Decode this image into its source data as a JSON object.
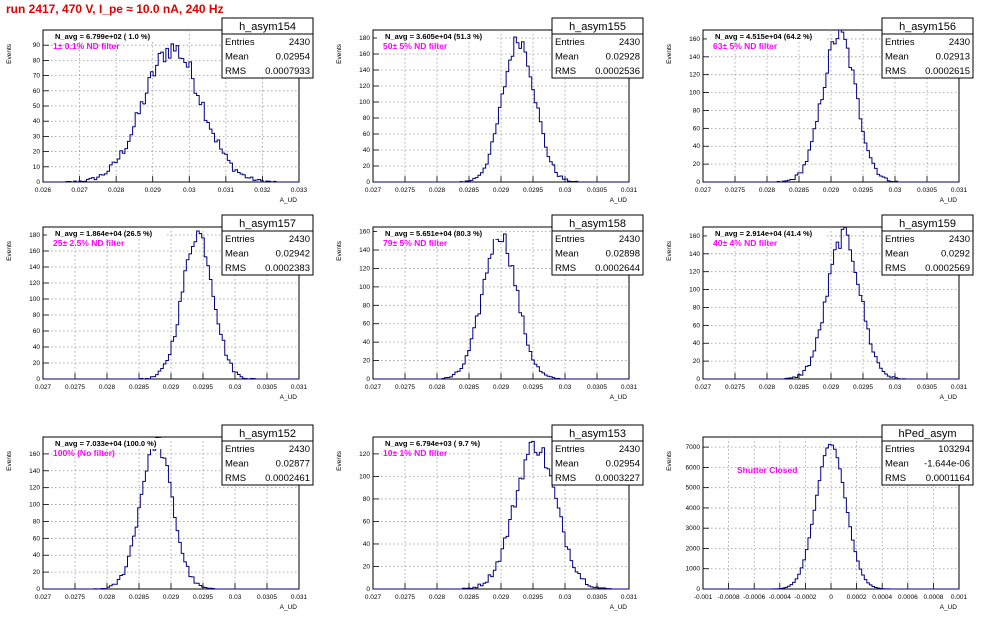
{
  "title": "run 2417,   470 V, I_pe ≈ 10.0 nA, 240 Hz",
  "axis_ylabel": "Events",
  "axis_xlabel": "A_UD",
  "stats_labels": {
    "entries": "Entries",
    "mean": "Mean",
    "rms": "RMS"
  },
  "colors": {
    "histogram": "#000080",
    "title": "#e00000",
    "annotation": "#ff00ff"
  },
  "chart_data": [
    {
      "type": "bar",
      "name": "h_asym154",
      "navg": "N_avg = 6.799e+02 ( 1.0 %)",
      "filter": "1± 0.1% ND filter",
      "entries": "2430",
      "mean": "0.02954",
      "rms": "0.0007933",
      "xlim": [
        0.026,
        0.033
      ],
      "xticks": [
        "0.026",
        "0.027",
        "0.028",
        "0.029",
        "0.03",
        "0.031",
        "0.032",
        "0.033"
      ],
      "ylim": [
        0,
        100
      ],
      "yticks": [
        "0",
        "10",
        "20",
        "30",
        "40",
        "50",
        "60",
        "70",
        "80",
        "90"
      ],
      "peak": 88
    },
    {
      "type": "bar",
      "name": "h_asym155",
      "navg": "N_avg = 3.605e+04 (51.3 %)",
      "filter": "50± 5% ND filter",
      "entries": "2430",
      "mean": "0.02928",
      "rms": "0.0002536",
      "xlim": [
        0.027,
        0.031
      ],
      "xticks": [
        "0.027",
        "0.0275",
        "0.028",
        "0.0285",
        "0.029",
        "0.0295",
        "0.03",
        "0.0305",
        "0.031"
      ],
      "ylim": [
        0,
        190
      ],
      "yticks": [
        "0",
        "20",
        "40",
        "60",
        "80",
        "100",
        "120",
        "140",
        "160",
        "180"
      ],
      "peak": 178
    },
    {
      "type": "bar",
      "name": "h_asym156",
      "navg": "N_avg = 4.515e+04 (64.2 %)",
      "filter": "63± 5% ND filter",
      "entries": "2430",
      "mean": "0.02913",
      "rms": "0.0002615",
      "xlim": [
        0.027,
        0.031
      ],
      "xticks": [
        "0.027",
        "0.0275",
        "0.028",
        "0.0285",
        "0.029",
        "0.0295",
        "0.03",
        "0.0305",
        "0.031"
      ],
      "ylim": [
        0,
        170
      ],
      "yticks": [
        "0",
        "20",
        "40",
        "60",
        "80",
        "100",
        "120",
        "140",
        "160"
      ],
      "peak": 165
    },
    {
      "type": "bar",
      "name": "h_asym157",
      "navg": "N_avg = 1.864e+04 (26.5 %)",
      "filter": "25± 2.5% ND filter",
      "entries": "2430",
      "mean": "0.02942",
      "rms": "0.0002383",
      "xlim": [
        0.027,
        0.031
      ],
      "xticks": [
        "0.027",
        "0.0275",
        "0.028",
        "0.0285",
        "0.029",
        "0.0295",
        "0.03",
        "0.0305",
        "0.031"
      ],
      "ylim": [
        0,
        190
      ],
      "yticks": [
        "0",
        "20",
        "40",
        "60",
        "80",
        "100",
        "120",
        "140",
        "160",
        "180"
      ],
      "peak": 183
    },
    {
      "type": "bar",
      "name": "h_asym158",
      "navg": "N_avg = 5.651e+04 (80.3 %)",
      "filter": "79± 5% ND filter",
      "entries": "2430",
      "mean": "0.02898",
      "rms": "0.0002644",
      "xlim": [
        0.027,
        0.031
      ],
      "xticks": [
        "0.027",
        "0.0275",
        "0.028",
        "0.0285",
        "0.029",
        "0.0295",
        "0.03",
        "0.0305",
        "0.031"
      ],
      "ylim": [
        0,
        165
      ],
      "yticks": [
        "0",
        "20",
        "40",
        "60",
        "80",
        "100",
        "120",
        "140",
        "160"
      ],
      "peak": 158
    },
    {
      "type": "bar",
      "name": "h_asym159",
      "navg": "N_avg = 2.914e+04 (41.4 %)",
      "filter": "40± 4% ND filter",
      "entries": "2430",
      "mean": "0.0292",
      "rms": "0.0002569",
      "xlim": [
        0.027,
        0.031
      ],
      "xticks": [
        "0.027",
        "0.0275",
        "0.028",
        "0.0285",
        "0.029",
        "0.0295",
        "0.03",
        "0.0305",
        "0.031"
      ],
      "ylim": [
        0,
        170
      ],
      "yticks": [
        "0",
        "20",
        "40",
        "60",
        "80",
        "100",
        "120",
        "140",
        "160"
      ],
      "peak": 160
    },
    {
      "type": "bar",
      "name": "h_asym152",
      "navg": "N_avg = 7.033e+04 (100.0 %)",
      "filter": "100% (No filter)",
      "entries": "2430",
      "mean": "0.02877",
      "rms": "0.0002461",
      "xlim": [
        0.027,
        0.031
      ],
      "xticks": [
        "0.027",
        "0.0275",
        "0.028",
        "0.0285",
        "0.029",
        "0.0295",
        "0.03",
        "0.0305",
        "0.031"
      ],
      "ylim": [
        0,
        180
      ],
      "yticks": [
        "0",
        "20",
        "40",
        "60",
        "80",
        "100",
        "120",
        "140",
        "160"
      ],
      "peak": 175
    },
    {
      "type": "bar",
      "name": "h_asym153",
      "navg": "N_avg = 6.794e+03 ( 9.7 %)",
      "filter": "10± 1% ND filter",
      "entries": "2430",
      "mean": "0.02954",
      "rms": "0.0003227",
      "xlim": [
        0.027,
        0.031
      ],
      "xticks": [
        "0.027",
        "0.0275",
        "0.028",
        "0.0285",
        "0.029",
        "0.0295",
        "0.03",
        "0.0305",
        "0.031"
      ],
      "ylim": [
        0,
        135
      ],
      "yticks": [
        "0",
        "20",
        "40",
        "60",
        "80",
        "100",
        "120"
      ],
      "peak": 128
    },
    {
      "type": "bar",
      "name": "hPed_asym",
      "navg": "",
      "filter": "Shutter Closed",
      "entries": "103294",
      "mean": "-1.644e-06",
      "rms": "0.0001164",
      "xlim": [
        -0.001,
        0.001
      ],
      "xticks": [
        "-0.001",
        "-0.0008",
        "-0.0006",
        "-0.0004",
        "-0.0002",
        "0",
        "0.0002",
        "0.0004",
        "0.0006",
        "0.0008",
        "0.001"
      ],
      "ylim": [
        0,
        7500
      ],
      "yticks": [
        "0",
        "1000",
        "2000",
        "3000",
        "4000",
        "5000",
        "6000",
        "7000"
      ],
      "peak": 7150
    }
  ]
}
